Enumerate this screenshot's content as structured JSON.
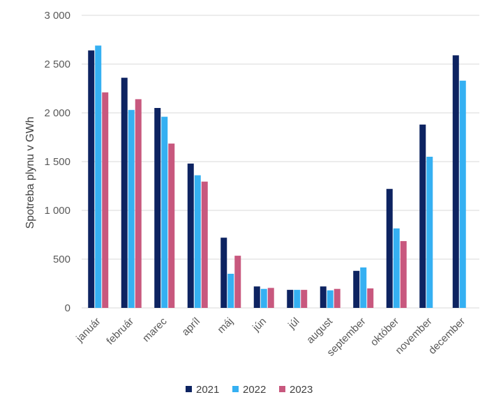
{
  "chart_data": {
    "type": "bar",
    "title": "",
    "xlabel": "",
    "ylabel": "Spotreba plynu v GWh",
    "ylim": [
      0,
      3000
    ],
    "yticks": [
      0,
      500,
      1000,
      1500,
      2000,
      2500,
      3000
    ],
    "ytick_labels": [
      "0",
      "500",
      "1 000",
      "1 500",
      "2 000",
      "2 500",
      "3 000"
    ],
    "grid": "horizontal",
    "legend_position": "bottom",
    "categories": [
      "január",
      "február",
      "marec",
      "apríl",
      "máj",
      "jún",
      "júl",
      "august",
      "september",
      "október",
      "november",
      "december"
    ],
    "series": [
      {
        "name": "2021",
        "color": "#0d2361",
        "values": [
          2640,
          2360,
          2050,
          1480,
          720,
          220,
          185,
          220,
          380,
          1220,
          1880,
          2590
        ]
      },
      {
        "name": "2022",
        "color": "#35b0f2",
        "values": [
          2690,
          2030,
          1960,
          1360,
          350,
          195,
          185,
          180,
          415,
          815,
          1550,
          2330
        ]
      },
      {
        "name": "2023",
        "color": "#c8587e",
        "values": [
          2210,
          2140,
          1685,
          1295,
          535,
          205,
          185,
          195,
          200,
          685,
          null,
          null
        ]
      }
    ]
  }
}
